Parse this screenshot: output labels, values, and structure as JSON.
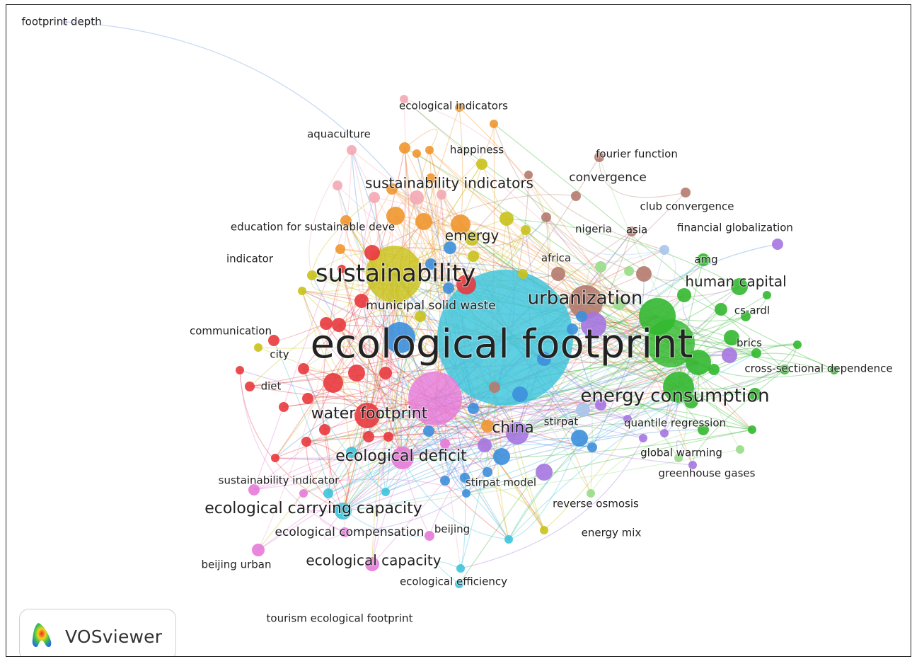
{
  "app": {
    "brand": "VOSviewer",
    "logo_icon": "vosviewer-logo-icon"
  },
  "clusters": {
    "red": "#e8383d",
    "green": "#33b830",
    "blue": "#3c8fdc",
    "yellow": "#c9c21a",
    "purple": "#a576e0",
    "cyan": "#3cc4dc",
    "orange": "#f0962e",
    "brown": "#b57a6e",
    "pink": "#e67ad8",
    "lightpink": "#f4a8b4",
    "lightgreen": "#98dc88",
    "lightblue": "#a8c4ec"
  },
  "keywords": [
    {
      "label": "ecological footprint",
      "cluster": "cyan",
      "weight": 100
    },
    {
      "label": "sustainability",
      "cluster": "yellow",
      "weight": 42
    },
    {
      "label": "urbanization",
      "cluster": "brown",
      "weight": 22
    },
    {
      "label": "energy consumption",
      "cluster": "green",
      "weight": 20
    },
    {
      "label": "water footprint",
      "cluster": "red",
      "weight": 16
    },
    {
      "label": "ecological deficit",
      "cluster": "pink",
      "weight": 16
    },
    {
      "label": "ecological carrying capacity",
      "cluster": "cyan",
      "weight": 14
    },
    {
      "label": "china",
      "cluster": "purple",
      "weight": 15
    },
    {
      "label": "ecological capacity",
      "cluster": "pink",
      "weight": 10
    },
    {
      "label": "human capital",
      "cluster": "green",
      "weight": 12
    },
    {
      "label": "sustainability indicators",
      "cluster": "orange",
      "weight": 12
    },
    {
      "label": "emergy",
      "cluster": "yellow",
      "weight": 11
    },
    {
      "label": "ecological compensation",
      "cluster": "cyan",
      "weight": 8
    },
    {
      "label": "municipal solid waste",
      "cluster": "blue",
      "weight": 7
    },
    {
      "label": "convergence",
      "cluster": "brown",
      "weight": 7
    },
    {
      "label": "fourier function",
      "cluster": "brown",
      "weight": 6
    },
    {
      "label": "club convergence",
      "cluster": "brown",
      "weight": 6
    },
    {
      "label": "ecological indicators",
      "cluster": "orange",
      "weight": 6
    },
    {
      "label": "aquaculture",
      "cluster": "lightpink",
      "weight": 6
    },
    {
      "label": "happiness",
      "cluster": "yellow",
      "weight": 6
    },
    {
      "label": "education for sustainable deve",
      "cluster": "orange",
      "weight": 6
    },
    {
      "label": "indicator",
      "cluster": "red",
      "weight": 5
    },
    {
      "label": "communication",
      "cluster": "yellow",
      "weight": 6
    },
    {
      "label": "city",
      "cluster": "pink",
      "weight": 5
    },
    {
      "label": "diet",
      "cluster": "red",
      "weight": 5
    },
    {
      "label": "nigeria",
      "cluster": "brown",
      "weight": 5
    },
    {
      "label": "asia",
      "cluster": "brown",
      "weight": 5
    },
    {
      "label": "financial globalization",
      "cluster": "purple",
      "weight": 6
    },
    {
      "label": "africa",
      "cluster": "brown",
      "weight": 6
    },
    {
      "label": "amg",
      "cluster": "green",
      "weight": 5
    },
    {
      "label": "cs-ardl",
      "cluster": "green",
      "weight": 5
    },
    {
      "label": "brics",
      "cluster": "purple",
      "weight": 5
    },
    {
      "label": "cross-sectional dependence",
      "cluster": "green",
      "weight": 6
    },
    {
      "label": "stirpat",
      "cluster": "lightblue",
      "weight": 6
    },
    {
      "label": "quantile regression",
      "cluster": "purple",
      "weight": 6
    },
    {
      "label": "global warming",
      "cluster": "green",
      "weight": 6
    },
    {
      "label": "greenhouse gases",
      "cluster": "purple",
      "weight": 6
    },
    {
      "label": "stirpat model",
      "cluster": "purple",
      "weight": 6
    },
    {
      "label": "reverse osmosis",
      "cluster": "lightgreen",
      "weight": 5
    },
    {
      "label": "energy mix",
      "cluster": "yellow",
      "weight": 5
    },
    {
      "label": "sustainability indicator",
      "cluster": "pink",
      "weight": 6
    },
    {
      "label": "beijing",
      "cluster": "pink",
      "weight": 5
    },
    {
      "label": "beijing urban",
      "cluster": "pink",
      "weight": 5
    },
    {
      "label": "ecological efficiency",
      "cluster": "cyan",
      "weight": 6
    },
    {
      "label": "tourism ecological footprint",
      "cluster": "pink",
      "weight": 5
    },
    {
      "label": "footprint depth",
      "cluster": "purple",
      "weight": 5
    }
  ]
}
